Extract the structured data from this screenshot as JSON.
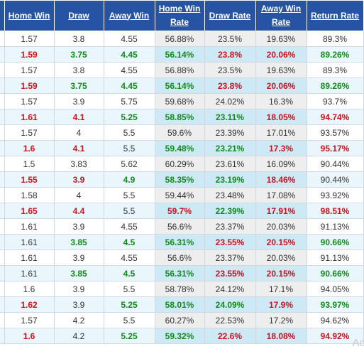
{
  "table": {
    "headers": [
      [
        "",
        ""
      ],
      [
        "Home Win",
        ""
      ],
      [
        "Draw",
        ""
      ],
      [
        "Away Win",
        ""
      ],
      [
        "Home Win",
        "Rate"
      ],
      [
        "Draw Rate",
        ""
      ],
      [
        "Away Win",
        "Rate"
      ],
      [
        "Return Rate",
        ""
      ]
    ],
    "rows": [
      {
        "style": "a",
        "cells": [
          "",
          "1.57",
          "3.8",
          "4.55",
          "56.88%",
          "23.5%",
          "19.63%",
          "89.3%"
        ],
        "marks": [
          "",
          "",
          "",
          "",
          "",
          "",
          "",
          ""
        ]
      },
      {
        "style": "b",
        "cells": [
          "",
          "1.59",
          "3.75",
          "4.45",
          "56.14%",
          "23.8%",
          "20.06%",
          "89.26%"
        ],
        "marks": [
          "",
          "up",
          "down",
          "down",
          "down",
          "up",
          "up",
          "down"
        ]
      },
      {
        "style": "a",
        "cells": [
          "",
          "1.57",
          "3.8",
          "4.55",
          "56.88%",
          "23.5%",
          "19.63%",
          "89.3%"
        ],
        "marks": [
          "",
          "",
          "",
          "",
          "",
          "",
          "",
          ""
        ]
      },
      {
        "style": "b",
        "cells": [
          "",
          "1.59",
          "3.75",
          "4.45",
          "56.14%",
          "23.8%",
          "20.06%",
          "89.26%"
        ],
        "marks": [
          "",
          "up",
          "down",
          "down",
          "down",
          "up",
          "up",
          "down"
        ]
      },
      {
        "style": "a",
        "cells": [
          "",
          "1.57",
          "3.9",
          "5.75",
          "59.68%",
          "24.02%",
          "16.3%",
          "93.7%"
        ],
        "marks": [
          "",
          "",
          "",
          "",
          "",
          "",
          "",
          ""
        ]
      },
      {
        "style": "b",
        "cells": [
          "",
          "1.61",
          "4.1",
          "5.25",
          "58.85%",
          "23.11%",
          "18.05%",
          "94.74%"
        ],
        "marks": [
          "",
          "up",
          "up",
          "down",
          "down",
          "down",
          "up",
          "up"
        ]
      },
      {
        "style": "a",
        "cells": [
          "",
          "1.57",
          "4",
          "5.5",
          "59.6%",
          "23.39%",
          "17.01%",
          "93.57%"
        ],
        "marks": [
          "",
          "",
          "",
          "",
          "",
          "",
          "",
          ""
        ]
      },
      {
        "style": "b",
        "cells": [
          "",
          "1.6",
          "4.1",
          "5.5",
          "59.48%",
          "23.21%",
          "17.3%",
          "95.17%"
        ],
        "marks": [
          "",
          "up",
          "up",
          "",
          "down",
          "down",
          "up",
          "up"
        ]
      },
      {
        "style": "a",
        "cells": [
          "",
          "1.5",
          "3.83",
          "5.62",
          "60.29%",
          "23.61%",
          "16.09%",
          "90.44%"
        ],
        "marks": [
          "",
          "",
          "",
          "",
          "",
          "",
          "",
          ""
        ]
      },
      {
        "style": "b",
        "cells": [
          "",
          "1.55",
          "3.9",
          "4.9",
          "58.35%",
          "23.19%",
          "18.46%",
          "90.44%"
        ],
        "marks": [
          "",
          "up",
          "up",
          "down",
          "down",
          "down",
          "up",
          ""
        ]
      },
      {
        "style": "a",
        "cells": [
          "",
          "1.58",
          "4",
          "5.5",
          "59.44%",
          "23.48%",
          "17.08%",
          "93.92%"
        ],
        "marks": [
          "",
          "",
          "",
          "",
          "",
          "",
          "",
          ""
        ]
      },
      {
        "style": "b",
        "cells": [
          "",
          "1.65",
          "4.4",
          "5.5",
          "59.7%",
          "22.39%",
          "17.91%",
          "98.51%"
        ],
        "marks": [
          "",
          "up",
          "up",
          "",
          "up",
          "down",
          "up",
          "up"
        ]
      },
      {
        "style": "a",
        "cells": [
          "",
          "1.61",
          "3.9",
          "4.55",
          "56.6%",
          "23.37%",
          "20.03%",
          "91.13%"
        ],
        "marks": [
          "",
          "",
          "",
          "",
          "",
          "",
          "",
          ""
        ]
      },
      {
        "style": "b",
        "cells": [
          "",
          "1.61",
          "3.85",
          "4.5",
          "56.31%",
          "23.55%",
          "20.15%",
          "90.66%"
        ],
        "marks": [
          "",
          "",
          "down",
          "down",
          "down",
          "up",
          "up",
          "down"
        ]
      },
      {
        "style": "a",
        "cells": [
          "",
          "1.61",
          "3.9",
          "4.55",
          "56.6%",
          "23.37%",
          "20.03%",
          "91.13%"
        ],
        "marks": [
          "",
          "",
          "",
          "",
          "",
          "",
          "",
          ""
        ]
      },
      {
        "style": "b",
        "cells": [
          "",
          "1.61",
          "3.85",
          "4.5",
          "56.31%",
          "23.55%",
          "20.15%",
          "90.66%"
        ],
        "marks": [
          "",
          "",
          "down",
          "down",
          "down",
          "up",
          "up",
          "down"
        ]
      },
      {
        "style": "a",
        "cells": [
          "",
          "1.6",
          "3.9",
          "5.5",
          "58.78%",
          "24.12%",
          "17.1%",
          "94.05%"
        ],
        "marks": [
          "",
          "",
          "",
          "",
          "",
          "",
          "",
          ""
        ]
      },
      {
        "style": "b",
        "cells": [
          "",
          "1.62",
          "3.9",
          "5.25",
          "58.01%",
          "24.09%",
          "17.9%",
          "93.97%"
        ],
        "marks": [
          "",
          "up",
          "",
          "down",
          "down",
          "down",
          "up",
          "down"
        ]
      },
      {
        "style": "a",
        "cells": [
          "",
          "1.57",
          "4.2",
          "5.5",
          "60.27%",
          "22.53%",
          "17.2%",
          "94.62%"
        ],
        "marks": [
          "",
          "",
          "",
          "",
          "",
          "",
          "",
          ""
        ]
      },
      {
        "style": "b",
        "cells": [
          "",
          "1.6",
          "4.2",
          "5.25",
          "59.32%",
          "22.6%",
          "18.08%",
          "94.92%"
        ],
        "marks": [
          "",
          "up",
          "",
          "down",
          "down",
          "up",
          "up",
          "up"
        ]
      }
    ]
  },
  "watermark": "Ac",
  "colors": {
    "header_bg": "#2653a4",
    "rise": "#d1121c",
    "fall": "#138a1c",
    "row_alt": "#e9f6fb"
  }
}
